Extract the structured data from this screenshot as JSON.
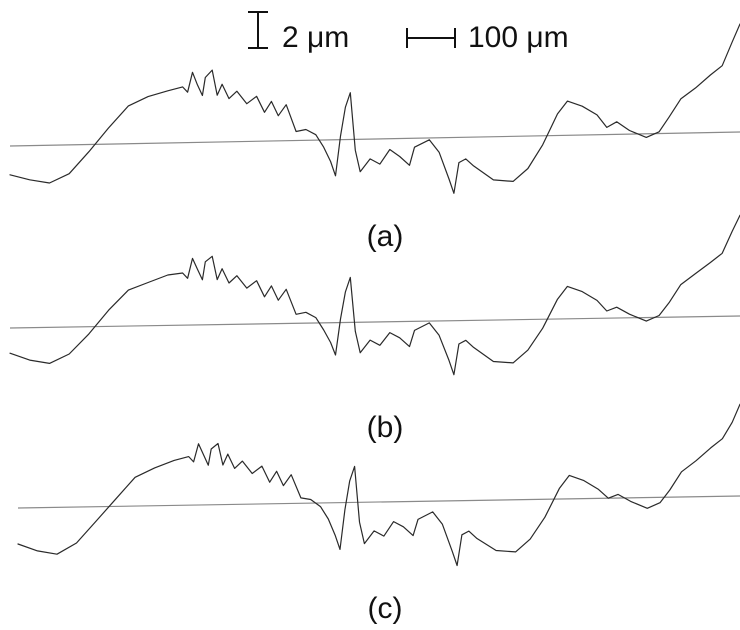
{
  "scale": {
    "vertical_label": "2 μm",
    "horizontal_label": "100 μm"
  },
  "panels": [
    {
      "label": "(a)",
      "profile": [
        [
          0,
          -1.6
        ],
        [
          20,
          -1.9
        ],
        [
          40,
          -2.1
        ],
        [
          60,
          -1.6
        ],
        [
          80,
          -0.4
        ],
        [
          100,
          0.9
        ],
        [
          120,
          2.1
        ],
        [
          140,
          2.6
        ],
        [
          160,
          2.9
        ],
        [
          175,
          3.1
        ],
        [
          180,
          2.8
        ],
        [
          185,
          3.9
        ],
        [
          190,
          3.2
        ],
        [
          195,
          2.6
        ],
        [
          198,
          3.6
        ],
        [
          205,
          4.0
        ],
        [
          210,
          2.6
        ],
        [
          215,
          3.2
        ],
        [
          222,
          2.4
        ],
        [
          230,
          2.8
        ],
        [
          240,
          2.1
        ],
        [
          250,
          2.5
        ],
        [
          258,
          1.6
        ],
        [
          265,
          2.2
        ],
        [
          272,
          1.4
        ],
        [
          280,
          2.0
        ],
        [
          290,
          0.5
        ],
        [
          300,
          0.6
        ],
        [
          310,
          0.3
        ],
        [
          318,
          -0.4
        ],
        [
          325,
          -1.2
        ],
        [
          330,
          -2.0
        ],
        [
          335,
          0.2
        ],
        [
          340,
          1.8
        ],
        [
          345,
          2.6
        ],
        [
          350,
          -0.6
        ],
        [
          355,
          -1.8
        ],
        [
          365,
          -1.1
        ],
        [
          375,
          -1.4
        ],
        [
          385,
          -0.6
        ],
        [
          395,
          -1.0
        ],
        [
          405,
          -1.5
        ],
        [
          410,
          -0.5
        ],
        [
          425,
          -0.1
        ],
        [
          435,
          -0.8
        ],
        [
          445,
          -2.3
        ],
        [
          450,
          -3.1
        ],
        [
          455,
          -1.4
        ],
        [
          462,
          -1.2
        ],
        [
          470,
          -1.6
        ],
        [
          490,
          -2.4
        ],
        [
          510,
          -2.5
        ],
        [
          525,
          -1.8
        ],
        [
          540,
          -0.5
        ],
        [
          555,
          1.2
        ],
        [
          565,
          1.9
        ],
        [
          580,
          1.6
        ],
        [
          595,
          1.1
        ],
        [
          605,
          0.4
        ],
        [
          615,
          0.7
        ],
        [
          628,
          0.2
        ],
        [
          645,
          -0.2
        ],
        [
          658,
          0.1
        ],
        [
          668,
          0.9
        ],
        [
          680,
          1.9
        ],
        [
          695,
          2.5
        ],
        [
          710,
          3.2
        ],
        [
          722,
          3.7
        ],
        [
          732,
          5.0
        ],
        [
          740,
          6.0
        ]
      ]
    },
    {
      "label": "(b)",
      "profile": [
        [
          0,
          -1.4
        ],
        [
          20,
          -1.8
        ],
        [
          40,
          -2.0
        ],
        [
          60,
          -1.5
        ],
        [
          80,
          -0.4
        ],
        [
          100,
          0.9
        ],
        [
          120,
          2.0
        ],
        [
          140,
          2.4
        ],
        [
          160,
          2.8
        ],
        [
          175,
          2.9
        ],
        [
          180,
          2.6
        ],
        [
          185,
          3.7
        ],
        [
          190,
          3.1
        ],
        [
          195,
          2.5
        ],
        [
          198,
          3.5
        ],
        [
          205,
          3.8
        ],
        [
          210,
          2.5
        ],
        [
          215,
          3.1
        ],
        [
          222,
          2.3
        ],
        [
          230,
          2.7
        ],
        [
          240,
          2.0
        ],
        [
          250,
          2.4
        ],
        [
          258,
          1.5
        ],
        [
          265,
          2.1
        ],
        [
          272,
          1.3
        ],
        [
          280,
          1.9
        ],
        [
          290,
          0.5
        ],
        [
          300,
          0.6
        ],
        [
          310,
          0.3
        ],
        [
          318,
          -0.4
        ],
        [
          325,
          -1.1
        ],
        [
          330,
          -1.8
        ],
        [
          335,
          0.2
        ],
        [
          340,
          1.7
        ],
        [
          345,
          2.5
        ],
        [
          350,
          -0.5
        ],
        [
          355,
          -1.7
        ],
        [
          365,
          -1.0
        ],
        [
          375,
          -1.3
        ],
        [
          385,
          -0.6
        ],
        [
          395,
          -0.9
        ],
        [
          405,
          -1.4
        ],
        [
          410,
          -0.5
        ],
        [
          425,
          -0.1
        ],
        [
          435,
          -0.8
        ],
        [
          445,
          -2.2
        ],
        [
          450,
          -3.0
        ],
        [
          455,
          -1.3
        ],
        [
          462,
          -1.1
        ],
        [
          470,
          -1.5
        ],
        [
          490,
          -2.3
        ],
        [
          510,
          -2.4
        ],
        [
          525,
          -1.7
        ],
        [
          540,
          -0.5
        ],
        [
          555,
          1.1
        ],
        [
          565,
          1.8
        ],
        [
          580,
          1.5
        ],
        [
          595,
          1.0
        ],
        [
          605,
          0.4
        ],
        [
          615,
          0.6
        ],
        [
          628,
          0.2
        ],
        [
          645,
          -0.2
        ],
        [
          658,
          0.1
        ],
        [
          668,
          0.8
        ],
        [
          680,
          1.8
        ],
        [
          695,
          2.4
        ],
        [
          710,
          3.0
        ],
        [
          722,
          3.5
        ],
        [
          732,
          4.7
        ],
        [
          740,
          5.6
        ]
      ]
    },
    {
      "label": "(c)",
      "profile": [
        [
          0,
          -2.0
        ],
        [
          20,
          -2.4
        ],
        [
          40,
          -2.6
        ],
        [
          60,
          -2.0
        ],
        [
          80,
          -0.8
        ],
        [
          100,
          0.4
        ],
        [
          120,
          1.6
        ],
        [
          140,
          2.1
        ],
        [
          160,
          2.5
        ],
        [
          175,
          2.7
        ],
        [
          180,
          2.4
        ],
        [
          185,
          3.4
        ],
        [
          190,
          2.8
        ],
        [
          195,
          2.2
        ],
        [
          198,
          3.1
        ],
        [
          205,
          3.4
        ],
        [
          210,
          2.2
        ],
        [
          215,
          2.8
        ],
        [
          222,
          2.0
        ],
        [
          230,
          2.4
        ],
        [
          240,
          1.7
        ],
        [
          250,
          2.1
        ],
        [
          258,
          1.2
        ],
        [
          265,
          1.8
        ],
        [
          272,
          1.0
        ],
        [
          280,
          1.6
        ],
        [
          290,
          0.3
        ],
        [
          300,
          0.2
        ],
        [
          310,
          -0.2
        ],
        [
          318,
          -0.9
        ],
        [
          325,
          -1.8
        ],
        [
          330,
          -2.6
        ],
        [
          335,
          -0.4
        ],
        [
          340,
          1.2
        ],
        [
          345,
          2.0
        ],
        [
          350,
          -1.1
        ],
        [
          355,
          -2.3
        ],
        [
          365,
          -1.6
        ],
        [
          375,
          -1.9
        ],
        [
          385,
          -1.1
        ],
        [
          395,
          -1.4
        ],
        [
          405,
          -1.9
        ],
        [
          410,
          -1.0
        ],
        [
          425,
          -0.6
        ],
        [
          435,
          -1.3
        ],
        [
          445,
          -2.8
        ],
        [
          450,
          -3.6
        ],
        [
          455,
          -1.9
        ],
        [
          462,
          -1.7
        ],
        [
          470,
          -2.1
        ],
        [
          490,
          -2.8
        ],
        [
          510,
          -2.9
        ],
        [
          525,
          -2.2
        ],
        [
          540,
          -1.0
        ],
        [
          555,
          0.6
        ],
        [
          565,
          1.3
        ],
        [
          580,
          1.0
        ],
        [
          595,
          0.5
        ],
        [
          605,
          0.0
        ],
        [
          615,
          0.2
        ],
        [
          628,
          -0.2
        ],
        [
          645,
          -0.6
        ],
        [
          658,
          -0.3
        ],
        [
          668,
          0.4
        ],
        [
          680,
          1.4
        ],
        [
          695,
          2.0
        ],
        [
          710,
          2.7
        ],
        [
          722,
          3.2
        ],
        [
          732,
          4.1
        ],
        [
          740,
          5.1
        ]
      ]
    }
  ]
}
